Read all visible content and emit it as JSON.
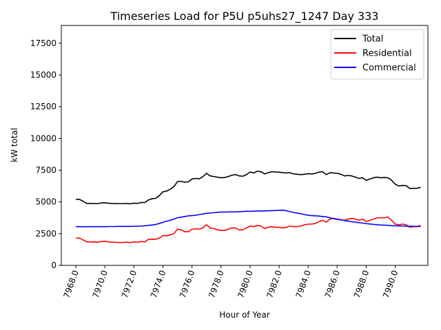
{
  "chart_data": {
    "type": "line",
    "title": "Timeseries Load for P5U p5uhs27_1247  Day 333",
    "xlabel": "Hour of Year",
    "ylabel": "kW total",
    "xlim": [
      7967.0,
      7992.25
    ],
    "ylim": [
      0,
      18900
    ],
    "xticks": [
      7968,
      7970,
      7972,
      7974,
      7976,
      7978,
      7980,
      7982,
      7984,
      7986,
      7988,
      7990
    ],
    "xtick_labels": [
      "7968.0",
      "7970.0",
      "7972.0",
      "7974.0",
      "7976.0",
      "7978.0",
      "7980.0",
      "7982.0",
      "7984.0",
      "7986.0",
      "7988.0",
      "7990.0"
    ],
    "yticks": [
      0,
      2500,
      5000,
      7500,
      10000,
      12500,
      15000,
      17500
    ],
    "ytick_labels": [
      "0",
      "2500",
      "5000",
      "7500",
      "10000",
      "12500",
      "15000",
      "17500"
    ],
    "legend_position": "top-right",
    "x_start": 7968.0,
    "x_step": 0.25,
    "series": [
      {
        "name": "Total",
        "color": "#000000",
        "values": [
          5200,
          5200,
          5050,
          4880,
          4880,
          4870,
          4860,
          4920,
          4930,
          4900,
          4880,
          4870,
          4860,
          4860,
          4880,
          4850,
          4900,
          4880,
          4950,
          4960,
          5150,
          5250,
          5280,
          5500,
          5800,
          5850,
          6000,
          6200,
          6600,
          6620,
          6550,
          6580,
          6800,
          6850,
          6820,
          6990,
          7250,
          7050,
          7000,
          6950,
          6900,
          6920,
          7000,
          7100,
          7150,
          7050,
          7020,
          7150,
          7350,
          7280,
          7420,
          7380,
          7200,
          7300,
          7380,
          7350,
          7350,
          7300,
          7280,
          7300,
          7200,
          7180,
          7150,
          7180,
          7220,
          7200,
          7250,
          7350,
          7380,
          7150,
          7300,
          7280,
          7250,
          7180,
          7050,
          7080,
          7050,
          6950,
          6850,
          6900,
          6700,
          6800,
          6900,
          6950,
          6900,
          6920,
          6900,
          6700,
          6400,
          6250,
          6300,
          6280,
          6050,
          6070,
          6070,
          6150
        ]
      },
      {
        "name": "Residential",
        "color": "#ff0000",
        "values": [
          2150,
          2150,
          2000,
          1850,
          1850,
          1840,
          1830,
          1880,
          1900,
          1850,
          1830,
          1820,
          1800,
          1800,
          1830,
          1790,
          1850,
          1820,
          1880,
          1850,
          2050,
          2060,
          2050,
          2150,
          2350,
          2330,
          2400,
          2500,
          2850,
          2800,
          2650,
          2650,
          2850,
          2880,
          2850,
          2950,
          3200,
          2950,
          2900,
          2800,
          2750,
          2750,
          2850,
          2950,
          2950,
          2800,
          2800,
          2950,
          3100,
          3050,
          3150,
          3100,
          2900,
          3000,
          3050,
          3000,
          3000,
          2950,
          3000,
          3100,
          3050,
          3050,
          3100,
          3200,
          3250,
          3250,
          3300,
          3450,
          3550,
          3400,
          3650,
          3700,
          3650,
          3600,
          3550,
          3650,
          3700,
          3650,
          3550,
          3650,
          3450,
          3550,
          3650,
          3750,
          3750,
          3750,
          3800,
          3550,
          3250,
          3200,
          3250,
          3200,
          3000,
          3050,
          3050,
          3150
        ]
      },
      {
        "name": "Commercial",
        "color": "#0000ff",
        "values": [
          3050,
          3050,
          3040,
          3050,
          3050,
          3050,
          3050,
          3050,
          3050,
          3060,
          3060,
          3060,
          3070,
          3070,
          3070,
          3070,
          3080,
          3090,
          3100,
          3120,
          3150,
          3180,
          3220,
          3300,
          3400,
          3480,
          3550,
          3650,
          3750,
          3800,
          3850,
          3900,
          3920,
          3950,
          4000,
          4050,
          4100,
          4130,
          4150,
          4180,
          4200,
          4200,
          4210,
          4210,
          4220,
          4230,
          4250,
          4260,
          4260,
          4270,
          4280,
          4280,
          4290,
          4300,
          4310,
          4320,
          4340,
          4350,
          4300,
          4230,
          4170,
          4120,
          4070,
          4000,
          3950,
          3920,
          3900,
          3880,
          3850,
          3820,
          3750,
          3680,
          3620,
          3580,
          3530,
          3490,
          3440,
          3400,
          3370,
          3330,
          3290,
          3260,
          3230,
          3200,
          3180,
          3170,
          3150,
          3130,
          3120,
          3110,
          3100,
          3090,
          3080,
          3080,
          3070,
          3060
        ]
      }
    ]
  }
}
